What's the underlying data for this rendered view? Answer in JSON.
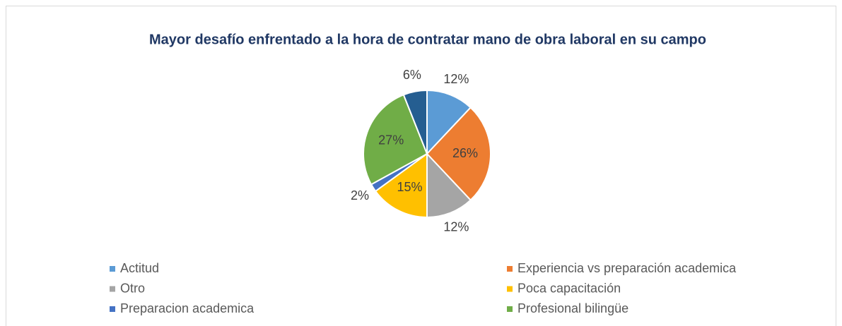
{
  "chart_data": {
    "type": "pie",
    "title": "Mayor desafío enfrentado a la hora de contratar mano de obra laboral en su campo",
    "categories": [
      "Actitud",
      "Experiencia vs preparación academica",
      "Otro",
      "Poca capacitación",
      "Preparacion academica",
      "Profesional bilingüe",
      null
    ],
    "values": [
      12,
      26,
      12,
      15,
      2,
      27,
      6
    ],
    "value_labels": [
      "12%",
      "26%",
      "12%",
      "15%",
      "2%",
      "27%",
      "6%"
    ],
    "colors": [
      "#5b9bd5",
      "#ed7d31",
      "#a5a5a5",
      "#ffc000",
      "#4472c4",
      "#70ad47",
      "#255e91"
    ],
    "legend": "bottom"
  }
}
